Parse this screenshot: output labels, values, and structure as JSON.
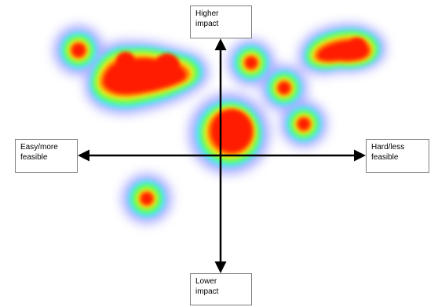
{
  "axes": {
    "top_label": "Higher\nimpact",
    "bottom_label": "Lower\nimpact",
    "left_label": "Easy/more\nfeasible",
    "right_label": "Hard/less\nfeasible",
    "line_color": "#000000"
  },
  "heatmap": {
    "palette": [
      "#ff0000",
      "#ffa500",
      "#ffff00",
      "#00ff00",
      "#00ffff",
      "#0000ff"
    ],
    "hotspots": [
      {
        "id": "upper-left-small"
      },
      {
        "id": "upper-left-large-cluster"
      },
      {
        "id": "center-blob"
      },
      {
        "id": "upper-right-small-1"
      },
      {
        "id": "upper-right-small-2"
      },
      {
        "id": "right-small"
      },
      {
        "id": "upper-right-pair"
      },
      {
        "id": "lower-left-small"
      }
    ]
  }
}
